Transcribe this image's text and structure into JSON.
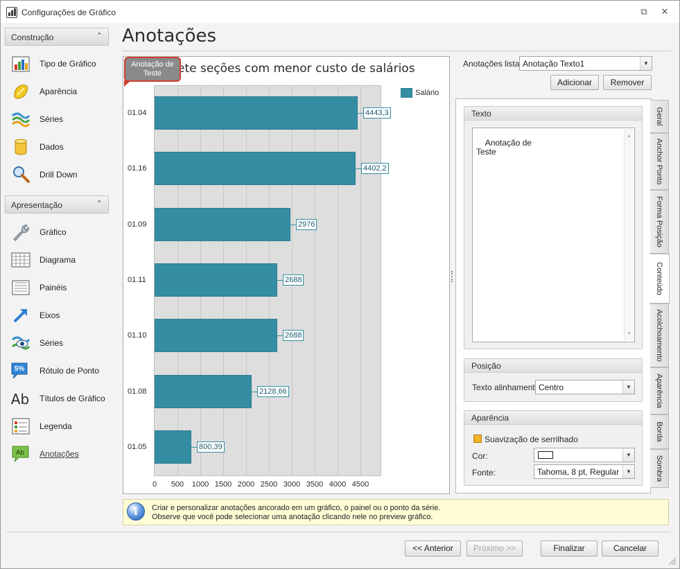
{
  "window": {
    "title": "Configurações de Gráfico",
    "restore_glyph": "⧉",
    "close_glyph": "✕"
  },
  "page": {
    "title": "Anotações"
  },
  "nav": {
    "groups": [
      {
        "label": "Construção",
        "chevron": "⌃",
        "items": [
          {
            "label": "Tipo de Gráfico",
            "icon": "chart-type-icon"
          },
          {
            "label": "Aparência",
            "icon": "appearance-icon"
          },
          {
            "label": "Séries",
            "icon": "series-icon"
          },
          {
            "label": "Dados",
            "icon": "data-icon"
          },
          {
            "label": "Drill Down",
            "icon": "drill-down-icon"
          }
        ]
      },
      {
        "label": "Apresentação",
        "chevron": "⌃",
        "items": [
          {
            "label": "Gráfico",
            "icon": "wrench-icon"
          },
          {
            "label": "Diagrama",
            "icon": "diagram-icon"
          },
          {
            "label": "Painéis",
            "icon": "panes-icon"
          },
          {
            "label": "Eixos",
            "icon": "axes-icon"
          },
          {
            "label": "Séries",
            "icon": "series-eye-icon"
          },
          {
            "label": "Rótulo de Ponto",
            "icon": "point-label-icon",
            "icon_text": "5%"
          },
          {
            "label": "Títulos de Gráfico",
            "icon": "chart-titles-icon",
            "icon_text": "Ab"
          },
          {
            "label": "Legenda",
            "icon": "legend-icon"
          },
          {
            "label": "Anotações",
            "icon": "annotations-icon",
            "icon_text": "Ab",
            "selected": true
          }
        ]
      }
    ]
  },
  "chart_data": {
    "type": "bar",
    "orientation": "horizontal",
    "title": "ete seções com menor custo de salários",
    "categories": [
      "01.04",
      "01.16",
      "01.09",
      "01.11",
      "01.10",
      "01.08",
      "01.05"
    ],
    "series": [
      {
        "name": "Salário",
        "values": [
          4443.3,
          4402.2,
          2976,
          2688,
          2688,
          2128.66,
          800.39
        ],
        "labels": [
          "4443,3",
          "4402,2",
          "2976",
          "2688",
          "2688",
          "2128,66",
          "800,39"
        ]
      }
    ],
    "x_ticks": [
      0,
      500,
      1000,
      1500,
      2000,
      2500,
      3000,
      3500,
      4000,
      4500
    ],
    "xlim": [
      0,
      5000
    ],
    "grid": true,
    "legend_position": "top-right",
    "color": "#348da3",
    "annotation": {
      "text_line1": "Anotação de",
      "text_line2": "Teste"
    }
  },
  "panel": {
    "list_label": "Anotações lista:",
    "list_value": "Anotação Texto1",
    "add_button": "Adicionar",
    "remove_button": "Remover",
    "text_group": {
      "title": "Texto",
      "content": "Anotação de\nTeste"
    },
    "position_group": {
      "title": "Posição",
      "align_label": "Texto alinhamento:",
      "align_value": "Centro"
    },
    "appearance_group": {
      "title": "Aparência",
      "antialias_label": "Suavização de serrilhado",
      "antialias_checked": true,
      "color_label": "Cor:",
      "color_value": "#ffffff",
      "font_label": "Fonte:",
      "font_value": "Tahoma, 8 pt, Regular"
    },
    "tabs": [
      "Geral",
      "Anchor Ponto",
      "Forma Posição",
      "Conteúdo",
      "Acolchoamento",
      "Aparência",
      "Borda",
      "Sombra"
    ],
    "active_tab": "Conteúdo"
  },
  "info": {
    "line1": "Criar e personalizar anotações ancorado em um gráfico, o painel ou o ponto da série.",
    "line2": "Observe que você pode selecionar uma anotação clicando nele no preview gráfico."
  },
  "footer": {
    "back": "<< Anterior",
    "next": "Próximo >>",
    "finish": "Finalizar",
    "cancel": "Cancelar"
  }
}
